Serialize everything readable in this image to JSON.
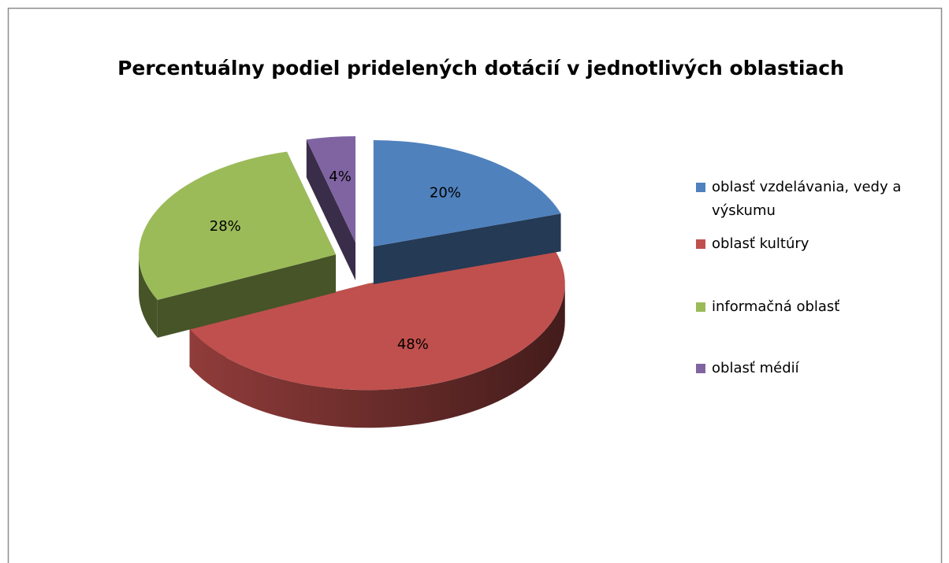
{
  "chart_data": {
    "type": "pie3d",
    "title": "Percentuálny podiel pridelených dotácií v jednotlivých oblastiach",
    "categories": [
      "oblasť vzdelávania, vedy a výskumu",
      "oblasť kultúry",
      "informačná oblasť",
      "oblasť médií"
    ],
    "values": [
      20,
      48,
      28,
      4
    ],
    "value_labels": [
      "20%",
      "48%",
      "28%",
      "4%"
    ],
    "colors": [
      "#4f81bd",
      "#c0504d",
      "#9bbb59",
      "#8064a2"
    ],
    "legend": "right"
  }
}
